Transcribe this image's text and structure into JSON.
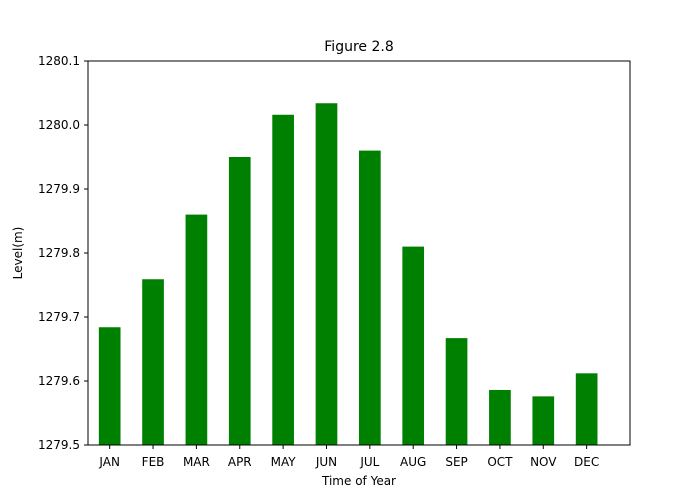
{
  "chart_data": {
    "type": "bar",
    "title": "Figure 2.8",
    "xlabel": "Time of Year",
    "ylabel": "Level(m)",
    "categories": [
      "JAN",
      "FEB",
      "MAR",
      "APR",
      "MAY",
      "JUN",
      "JUL",
      "AUG",
      "SEP",
      "OCT",
      "NOV",
      "DEC"
    ],
    "values": [
      1279.684,
      1279.759,
      1279.86,
      1279.95,
      1280.016,
      1280.034,
      1279.96,
      1279.81,
      1279.667,
      1279.586,
      1279.576,
      1279.612
    ],
    "ylim": [
      1279.5,
      1280.1
    ],
    "yticks": [
      "1279.5",
      "1279.6",
      "1279.7",
      "1279.8",
      "1279.9",
      "1280.0",
      "1280.1"
    ],
    "ytick_values": [
      1279.5,
      1279.6,
      1279.7,
      1279.8,
      1279.9,
      1280.0,
      1280.1
    ],
    "bar_color": "#008000",
    "grid": false,
    "legend": "none"
  }
}
